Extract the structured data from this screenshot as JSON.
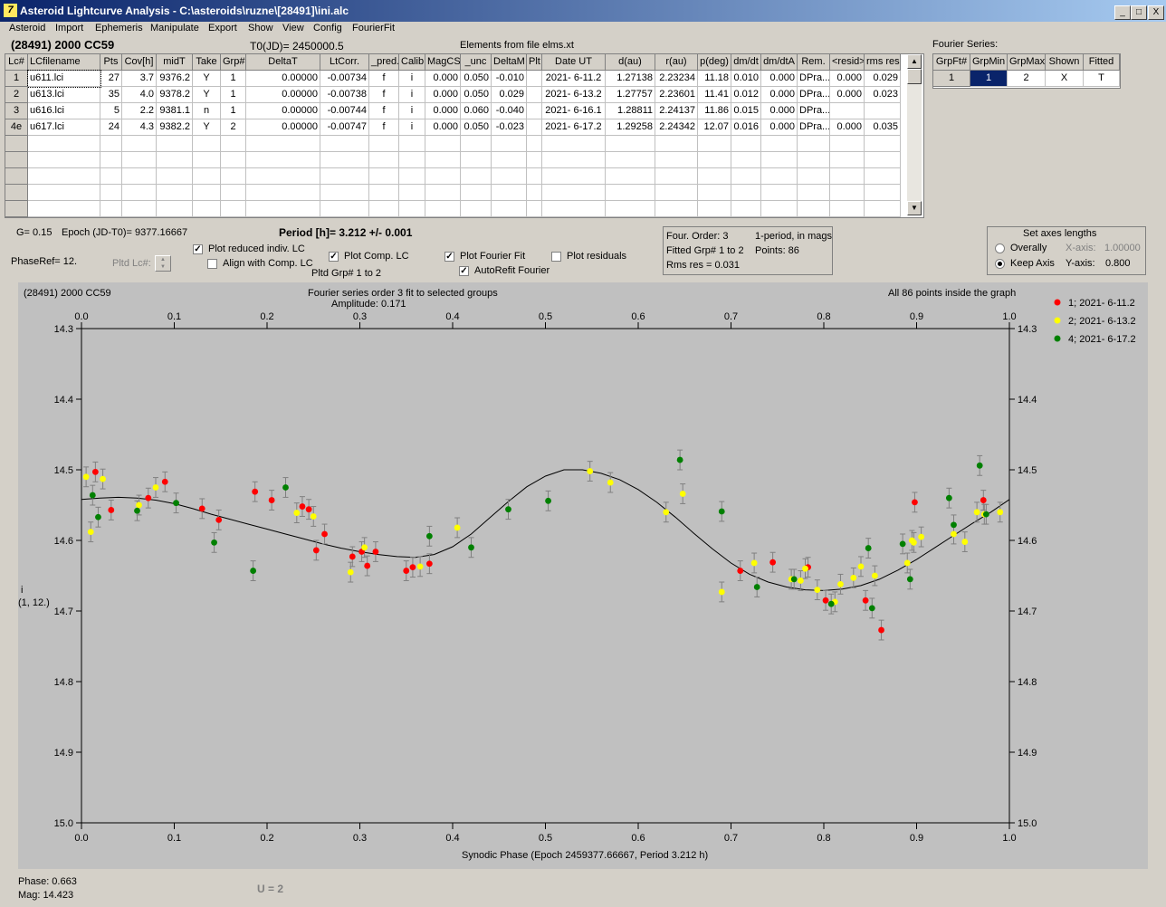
{
  "window": {
    "title": "Asteroid Lightcurve Analysis - C:\\asteroids\\ruzne\\[28491]\\ini.alc",
    "icon_text": "7",
    "buttons": {
      "minimize": "_",
      "maximize": "□",
      "close": "X"
    }
  },
  "menu": [
    "Asteroid",
    "Import",
    "Ephemeris",
    "Manipulate",
    "Export",
    "Show",
    "View",
    "Config",
    "FourierFit"
  ],
  "header": {
    "asteroid": "(28491) 2000 CC59",
    "t0": "T0(JD)= 2450000.5",
    "elements": "Elements from file elms.xt",
    "fourier_label": "Fourier Series:"
  },
  "lc_table": {
    "columns": [
      "Lc#",
      "LCfilename",
      "Pts",
      "Cov[h]",
      "midT",
      "Take",
      "Grp#",
      "DeltaT",
      "LtCorr.",
      "_pred.",
      "Calib.",
      "MagCS",
      "_unc",
      "DeltaM",
      "Plt",
      "Date UT",
      "d(au)",
      "r(au)",
      "p(deg)",
      "dm/dt",
      "dm/dtA",
      "Rem.",
      "<resid>",
      "rms res"
    ],
    "rows": [
      [
        "1",
        "u611.lci",
        "27",
        "3.7",
        "9376.2",
        "Y",
        "1",
        "0.00000",
        "-0.00734",
        "f",
        "i",
        "0.000",
        "0.050",
        "-0.010",
        "",
        "2021- 6-11.2",
        "1.27138",
        "2.23234",
        "11.18",
        "0.010",
        "0.000",
        "DPra...",
        "0.000",
        "0.029"
      ],
      [
        "2",
        "u613.lci",
        "35",
        "4.0",
        "9378.2",
        "Y",
        "1",
        "0.00000",
        "-0.00738",
        "f",
        "i",
        "0.000",
        "0.050",
        "0.029",
        "",
        "2021- 6-13.2",
        "1.27757",
        "2.23601",
        "11.41",
        "0.012",
        "0.000",
        "DPra...",
        "0.000",
        "0.023"
      ],
      [
        "3",
        "u616.lci",
        "5",
        "2.2",
        "9381.1",
        "n",
        "1",
        "0.00000",
        "-0.00744",
        "f",
        "i",
        "0.000",
        "0.060",
        "-0.040",
        "",
        "2021- 6-16.1",
        "1.28811",
        "2.24137",
        "11.86",
        "0.015",
        "0.000",
        "DPra...",
        "",
        ""
      ],
      [
        "4e",
        "u617.lci",
        "24",
        "4.3",
        "9382.2",
        "Y",
        "2",
        "0.00000",
        "-0.00747",
        "f",
        "i",
        "0.000",
        "0.050",
        "-0.023",
        "",
        "2021- 6-17.2",
        "1.29258",
        "2.24342",
        "12.07",
        "0.016",
        "0.000",
        "DPra...",
        "0.000",
        "0.035"
      ]
    ]
  },
  "fourier_table": {
    "columns": [
      "GrpFt#",
      "GrpMin",
      "GrpMax",
      "Shown",
      "Fitted"
    ],
    "rows": [
      [
        "1",
        "1",
        "2",
        "X",
        "T"
      ]
    ]
  },
  "info": {
    "g": "G= 0.15",
    "epoch": "Epoch (JD-T0)= 9377.16667",
    "period": "Period [h]= 3.212 +/- 0.001",
    "phaseref": "PhaseRef= 12.",
    "pltd_lc": "Pltd Lc#:",
    "plot_reduced": "Plot reduced indiv. LC",
    "align_comp": "Align with Comp. LC",
    "plot_comp": "Plot Comp. LC",
    "pltd_grp": "Pltd Grp#  1   to   2",
    "plot_fourier": "Plot Fourier Fit",
    "autorefit": "AutoRefit Fourier",
    "plot_residuals": "Plot residuals",
    "four_order": "Four. Order:  3",
    "one_period": "1-period, in mags",
    "fitted_grp": "Fitted Grp# 1 to 2",
    "points": "Points: 86",
    "rms_res": "Rms res     = 0.031",
    "axes_title": "Set axes lengths",
    "overally": "Overally",
    "keep_axis": "Keep Axis",
    "x_axis_label": "X-axis:",
    "x_axis_value": "1.00000",
    "y_axis_label": "Y-axis:",
    "y_axis_value": "0.800",
    "checks": {
      "plot_reduced": true,
      "align_comp": false,
      "plot_comp": true,
      "plot_fourier": true,
      "autorefit": true,
      "plot_residuals": false
    },
    "check_mark": "✓",
    "radio_selected": "Keep Axis"
  },
  "plot": {
    "title_left": "(28491) 2000 CC59",
    "title_center": "Fourier series order 3 fit to selected groups",
    "amplitude": "Amplitude: 0.171",
    "title_right": "All 86 points inside the graph",
    "ylabel1": "i",
    "ylabel2": "(1, 12.)",
    "xlabel": "Synodic Phase (Epoch 2459377.66667, Period 3.212 h)"
  },
  "footer": {
    "phase": "Phase:  0.663",
    "mag": "Mag:    14.423",
    "u": "U = 2"
  },
  "chart_data": {
    "type": "scatter",
    "xlim": [
      0.0,
      1.0
    ],
    "ylim": [
      14.3,
      15.0
    ],
    "y_inverted": true,
    "xticks": [
      0.0,
      0.1,
      0.2,
      0.3,
      0.4,
      0.5,
      0.6,
      0.7,
      0.8,
      0.9,
      1.0
    ],
    "xtick_labels": [
      "0.0",
      "0.1",
      "0.2",
      "0.3",
      "0.4",
      "0.5",
      "0.6",
      "0.7",
      "0.8",
      "0.9",
      "1.0"
    ],
    "yticks": [
      14.3,
      14.4,
      14.5,
      14.6,
      14.7,
      14.8,
      14.9,
      15.0
    ],
    "ytick_labels": [
      "14.3",
      "14.4",
      "14.5",
      "14.6",
      "14.7",
      "14.8",
      "14.9",
      "15.0"
    ],
    "error_bar": 0.014,
    "series": [
      {
        "name": "1; 2021- 6-11.2",
        "color": "#ff0000",
        "points": [
          [
            0.015,
            14.503
          ],
          [
            0.032,
            14.557
          ],
          [
            0.072,
            14.54
          ],
          [
            0.09,
            14.517
          ],
          [
            0.13,
            14.555
          ],
          [
            0.148,
            14.571
          ],
          [
            0.187,
            14.531
          ],
          [
            0.205,
            14.543
          ],
          [
            0.238,
            14.552
          ],
          [
            0.245,
            14.556
          ],
          [
            0.253,
            14.614
          ],
          [
            0.262,
            14.591
          ],
          [
            0.292,
            14.623
          ],
          [
            0.302,
            14.616
          ],
          [
            0.308,
            14.636
          ],
          [
            0.317,
            14.616
          ],
          [
            0.35,
            14.643
          ],
          [
            0.357,
            14.638
          ],
          [
            0.375,
            14.633
          ],
          [
            0.71,
            14.643
          ],
          [
            0.745,
            14.631
          ],
          [
            0.783,
            14.638
          ],
          [
            0.802,
            14.685
          ],
          [
            0.845,
            14.685
          ],
          [
            0.862,
            14.727
          ],
          [
            0.898,
            14.546
          ],
          [
            0.972,
            14.543
          ]
        ]
      },
      {
        "name": "2; 2021- 6-13.2",
        "color": "#ffff00",
        "points": [
          [
            0.005,
            14.51
          ],
          [
            0.01,
            14.588
          ],
          [
            0.023,
            14.513
          ],
          [
            0.062,
            14.55
          ],
          [
            0.08,
            14.525
          ],
          [
            0.232,
            14.561
          ],
          [
            0.25,
            14.566
          ],
          [
            0.29,
            14.645
          ],
          [
            0.305,
            14.61
          ],
          [
            0.365,
            14.637
          ],
          [
            0.405,
            14.582
          ],
          [
            0.548,
            14.502
          ],
          [
            0.57,
            14.518
          ],
          [
            0.63,
            14.56
          ],
          [
            0.648,
            14.534
          ],
          [
            0.69,
            14.673
          ],
          [
            0.725,
            14.632
          ],
          [
            0.765,
            14.655
          ],
          [
            0.775,
            14.657
          ],
          [
            0.78,
            14.64
          ],
          [
            0.793,
            14.67
          ],
          [
            0.812,
            14.687
          ],
          [
            0.818,
            14.662
          ],
          [
            0.832,
            14.653
          ],
          [
            0.84,
            14.637
          ],
          [
            0.855,
            14.65
          ],
          [
            0.89,
            14.632
          ],
          [
            0.897,
            14.603
          ],
          [
            0.905,
            14.595
          ],
          [
            0.94,
            14.591
          ],
          [
            0.952,
            14.602
          ],
          [
            0.965,
            14.56
          ],
          [
            0.973,
            14.563
          ],
          [
            0.99,
            14.56
          ],
          [
            0.895,
            14.6
          ]
        ]
      },
      {
        "name": "4; 2021- 6-17.2",
        "color": "#008000",
        "points": [
          [
            0.012,
            14.536
          ],
          [
            0.018,
            14.567
          ],
          [
            0.06,
            14.558
          ],
          [
            0.102,
            14.547
          ],
          [
            0.143,
            14.603
          ],
          [
            0.185,
            14.643
          ],
          [
            0.22,
            14.525
          ],
          [
            0.375,
            14.594
          ],
          [
            0.42,
            14.61
          ],
          [
            0.46,
            14.556
          ],
          [
            0.503,
            14.544
          ],
          [
            0.645,
            14.486
          ],
          [
            0.69,
            14.559
          ],
          [
            0.728,
            14.666
          ],
          [
            0.768,
            14.655
          ],
          [
            0.808,
            14.69
          ],
          [
            0.848,
            14.611
          ],
          [
            0.852,
            14.696
          ],
          [
            0.885,
            14.605
          ],
          [
            0.893,
            14.655
          ],
          [
            0.935,
            14.54
          ],
          [
            0.94,
            14.578
          ],
          [
            0.968,
            14.494
          ],
          [
            0.975,
            14.563
          ]
        ]
      }
    ],
    "fit_curve": [
      [
        0.0,
        14.542
      ],
      [
        0.02,
        14.54
      ],
      [
        0.04,
        14.539
      ],
      [
        0.06,
        14.54
      ],
      [
        0.08,
        14.543
      ],
      [
        0.1,
        14.548
      ],
      [
        0.12,
        14.555
      ],
      [
        0.14,
        14.563
      ],
      [
        0.16,
        14.57
      ],
      [
        0.18,
        14.577
      ],
      [
        0.2,
        14.584
      ],
      [
        0.22,
        14.591
      ],
      [
        0.24,
        14.598
      ],
      [
        0.26,
        14.605
      ],
      [
        0.28,
        14.611
      ],
      [
        0.3,
        14.616
      ],
      [
        0.32,
        14.62
      ],
      [
        0.34,
        14.623
      ],
      [
        0.36,
        14.624
      ],
      [
        0.38,
        14.62
      ],
      [
        0.4,
        14.609
      ],
      [
        0.42,
        14.591
      ],
      [
        0.44,
        14.568
      ],
      [
        0.46,
        14.545
      ],
      [
        0.48,
        14.524
      ],
      [
        0.5,
        14.509
      ],
      [
        0.52,
        14.5
      ],
      [
        0.54,
        14.5
      ],
      [
        0.56,
        14.505
      ],
      [
        0.58,
        14.514
      ],
      [
        0.6,
        14.528
      ],
      [
        0.62,
        14.546
      ],
      [
        0.64,
        14.567
      ],
      [
        0.66,
        14.59
      ],
      [
        0.68,
        14.612
      ],
      [
        0.7,
        14.632
      ],
      [
        0.72,
        14.648
      ],
      [
        0.74,
        14.659
      ],
      [
        0.76,
        14.666
      ],
      [
        0.78,
        14.67
      ],
      [
        0.8,
        14.671
      ],
      [
        0.82,
        14.669
      ],
      [
        0.84,
        14.664
      ],
      [
        0.86,
        14.655
      ],
      [
        0.88,
        14.642
      ],
      [
        0.9,
        14.627
      ],
      [
        0.92,
        14.61
      ],
      [
        0.94,
        14.593
      ],
      [
        0.96,
        14.576
      ],
      [
        0.98,
        14.56
      ],
      [
        1.0,
        14.542
      ]
    ]
  }
}
